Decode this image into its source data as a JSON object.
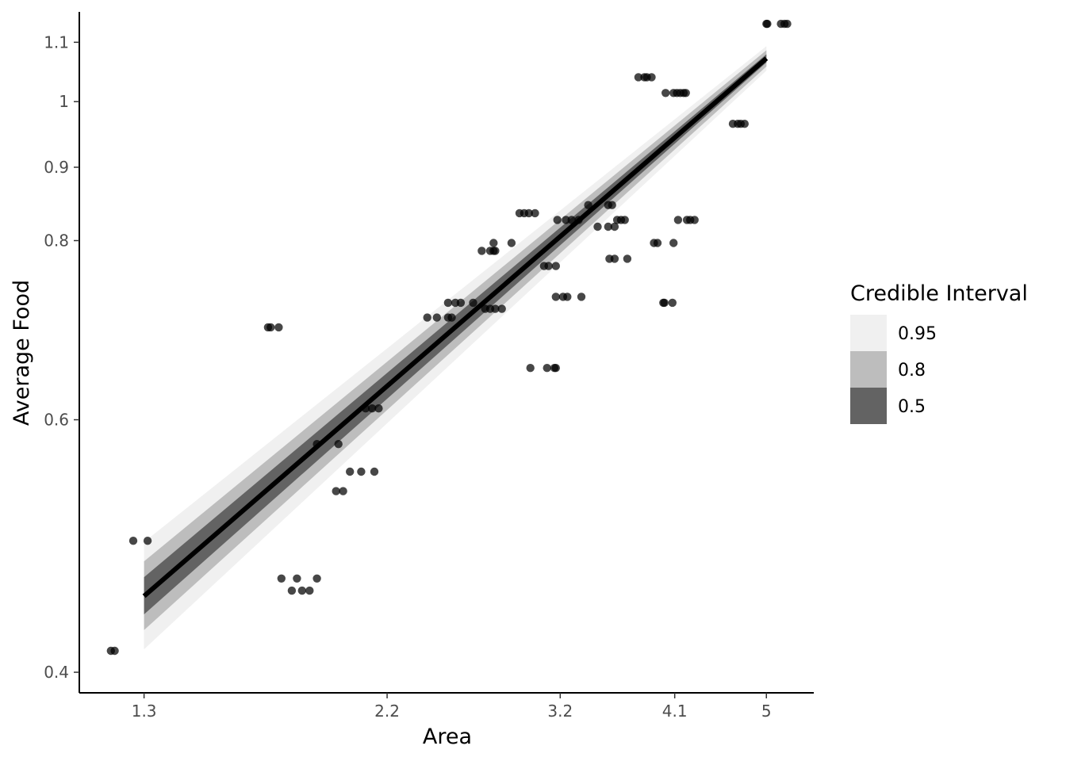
{
  "chart_data": {
    "type": "scatter",
    "xlabel": "Area",
    "ylabel": "Average Food",
    "x_ticks": [
      1.3,
      2.2,
      3.2,
      4.1,
      5
    ],
    "x_tick_labels": [
      "1.3",
      "2.2",
      "3.2",
      "4.1",
      "5"
    ],
    "y_ticks": [
      0.4,
      0.6,
      0.8,
      0.9,
      1,
      1.1
    ],
    "y_tick_labels": [
      "0.4",
      "0.6",
      "0.8",
      "0.9",
      "1",
      "1.1"
    ],
    "x_scale": "log",
    "y_scale": "log",
    "xlim": [
      1.13,
      5.54
    ],
    "ylim": [
      0.387,
      1.155
    ],
    "grid": false,
    "legend_position": "right",
    "legend": {
      "title": "Credible Interval",
      "entries": [
        {
          "label": "0.95",
          "color": "#f0f0f0"
        },
        {
          "label": "0.8",
          "color": "#bdbdbd"
        },
        {
          "label": "0.5",
          "color": "#636363"
        }
      ]
    },
    "fit_line": {
      "x": [
        1.3,
        5.0
      ],
      "y": [
        0.452,
        1.072
      ],
      "color": "#000000"
    },
    "bands": [
      {
        "level": "0.95",
        "color": "#f0f0f0",
        "lower": [
          0.415,
          1.051
        ],
        "upper": [
          0.493,
          1.093
        ]
      },
      {
        "level": "0.8",
        "color": "#bdbdbd",
        "lower": [
          0.428,
          1.058
        ],
        "upper": [
          0.478,
          1.086
        ]
      },
      {
        "level": "0.5",
        "color": "#636363",
        "lower": [
          0.439,
          1.065
        ],
        "upper": [
          0.466,
          1.079
        ]
      }
    ],
    "points": [
      [
        1.21,
        0.414
      ],
      [
        1.22,
        0.414
      ],
      [
        1.27,
        0.494
      ],
      [
        1.31,
        0.494
      ],
      [
        1.7,
        0.696
      ],
      [
        1.71,
        0.696
      ],
      [
        1.74,
        0.696
      ],
      [
        1.75,
        0.465
      ],
      [
        1.79,
        0.456
      ],
      [
        1.81,
        0.465
      ],
      [
        1.83,
        0.456
      ],
      [
        1.86,
        0.456
      ],
      [
        1.89,
        0.465
      ],
      [
        1.89,
        0.577
      ],
      [
        1.98,
        0.577
      ],
      [
        1.97,
        0.535
      ],
      [
        2.0,
        0.535
      ],
      [
        2.03,
        0.552
      ],
      [
        2.08,
        0.552
      ],
      [
        2.14,
        0.552
      ],
      [
        2.1,
        0.611
      ],
      [
        2.13,
        0.611
      ],
      [
        2.16,
        0.611
      ],
      [
        2.4,
        0.707
      ],
      [
        2.45,
        0.707
      ],
      [
        2.51,
        0.707
      ],
      [
        2.53,
        0.707
      ],
      [
        2.51,
        0.724
      ],
      [
        2.55,
        0.724
      ],
      [
        2.58,
        0.724
      ],
      [
        2.65,
        0.724
      ],
      [
        2.7,
        0.787
      ],
      [
        2.75,
        0.787
      ],
      [
        2.77,
        0.787
      ],
      [
        2.78,
        0.787
      ],
      [
        2.77,
        0.797
      ],
      [
        2.72,
        0.717
      ],
      [
        2.75,
        0.717
      ],
      [
        2.78,
        0.717
      ],
      [
        2.82,
        0.717
      ],
      [
        2.88,
        0.797
      ],
      [
        2.93,
        0.836
      ],
      [
        2.96,
        0.836
      ],
      [
        2.99,
        0.836
      ],
      [
        3.03,
        0.836
      ],
      [
        3.0,
        0.652
      ],
      [
        3.11,
        0.652
      ],
      [
        3.16,
        0.652
      ],
      [
        3.17,
        0.652
      ],
      [
        3.09,
        0.768
      ],
      [
        3.12,
        0.768
      ],
      [
        3.17,
        0.768
      ],
      [
        3.17,
        0.731
      ],
      [
        3.22,
        0.731
      ],
      [
        3.25,
        0.731
      ],
      [
        3.35,
        0.731
      ],
      [
        3.18,
        0.827
      ],
      [
        3.24,
        0.827
      ],
      [
        3.28,
        0.827
      ],
      [
        3.33,
        0.827
      ],
      [
        3.4,
        0.847
      ],
      [
        3.47,
        0.818
      ],
      [
        3.55,
        0.847
      ],
      [
        3.58,
        0.847
      ],
      [
        3.55,
        0.818
      ],
      [
        3.6,
        0.818
      ],
      [
        3.56,
        0.777
      ],
      [
        3.6,
        0.777
      ],
      [
        3.62,
        0.827
      ],
      [
        3.65,
        0.827
      ],
      [
        3.68,
        0.827
      ],
      [
        3.7,
        0.777
      ],
      [
        3.79,
        1.04
      ],
      [
        3.84,
        1.04
      ],
      [
        3.86,
        1.04
      ],
      [
        3.9,
        1.04
      ],
      [
        3.92,
        0.797
      ],
      [
        3.95,
        0.797
      ],
      [
        4.0,
        0.724
      ],
      [
        4.01,
        0.724
      ],
      [
        4.02,
        1.014
      ],
      [
        4.09,
        1.014
      ],
      [
        4.12,
        1.014
      ],
      [
        4.15,
        1.014
      ],
      [
        4.18,
        1.014
      ],
      [
        4.2,
        1.014
      ],
      [
        4.09,
        0.797
      ],
      [
        4.08,
        0.724
      ],
      [
        4.13,
        0.827
      ],
      [
        4.21,
        0.827
      ],
      [
        4.24,
        0.827
      ],
      [
        4.28,
        0.827
      ],
      [
        4.65,
        0.965
      ],
      [
        4.7,
        0.965
      ],
      [
        4.73,
        0.965
      ],
      [
        4.77,
        0.965
      ],
      [
        5.0,
        1.133
      ],
      [
        5.01,
        1.133
      ],
      [
        5.16,
        1.133
      ],
      [
        5.2,
        1.133
      ],
      [
        5.23,
        1.133
      ]
    ]
  }
}
